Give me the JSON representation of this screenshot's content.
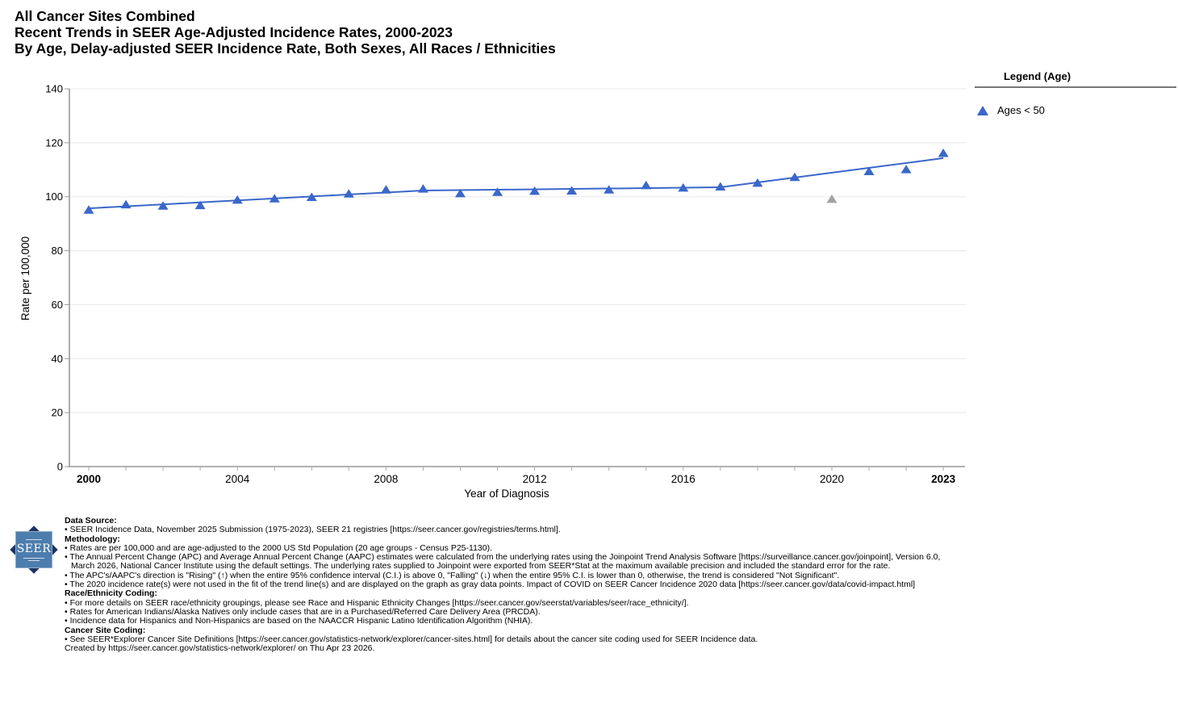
{
  "header": {
    "title_line1": "All Cancer Sites Combined",
    "title_line2": "Recent Trends in SEER Age-Adjusted Incidence Rates, 2000-2023",
    "title_line3": "By Age, Delay-adjusted SEER Incidence Rate, Both Sexes, All Races / Ethnicities"
  },
  "legend": {
    "title": "Legend (Age)",
    "entries": [
      {
        "label": "Ages < 50",
        "marker": "triangle-up-icon",
        "color": "#3A67CA"
      }
    ]
  },
  "chart_data": {
    "type": "line",
    "title": "All Cancer Sites Combined — Recent Trends in SEER Age-Adjusted Incidence Rates, 2000-2023, By Age, Delay-adjusted SEER Incidence Rate, Both Sexes, All Races / Ethnicities",
    "xlabel": "Year of Diagnosis",
    "ylabel": "Rate per 100,000",
    "ylim": [
      0,
      140
    ],
    "yticks": [
      0,
      20,
      40,
      60,
      80,
      100,
      120,
      140
    ],
    "xticks": [
      2000,
      2004,
      2008,
      2012,
      2016,
      2020,
      2023
    ],
    "bold_xticks": [
      2000,
      2023
    ],
    "grid": "horizontal",
    "legend_position": "right",
    "colors": {
      "series": "#3A67CA",
      "excluded_point": "#A3A3A3",
      "gridline": "#E8E8E8",
      "axis": "#999999"
    },
    "series": [
      {
        "name": "Ages < 50 (observed rates)",
        "marker": "triangle-up",
        "color": "#3A67CA",
        "point_name": "data-point-triangle",
        "x": [
          2000,
          2001,
          2002,
          2003,
          2004,
          2005,
          2006,
          2007,
          2008,
          2009,
          2010,
          2011,
          2012,
          2013,
          2014,
          2015,
          2016,
          2017,
          2018,
          2019,
          2020,
          2021,
          2022,
          2023
        ],
        "y": [
          95.2,
          97.2,
          96.7,
          96.9,
          98.9,
          99.4,
          99.9,
          101.2,
          102.7,
          103.0,
          101.3,
          101.8,
          102.2,
          102.3,
          102.7,
          104.3,
          103.4,
          103.8,
          105.2,
          107.3,
          null,
          109.5,
          110.2,
          116.2
        ]
      },
      {
        "name": "2020 rate (excluded from trend fit, COVID impact)",
        "marker": "triangle-up",
        "color": "#A3A3A3",
        "point_name": "covid-2020-gray-point",
        "x": [
          2020
        ],
        "y": [
          99.2
        ]
      },
      {
        "name": "Joinpoint trend line",
        "marker": "none",
        "color": "#3A67CA",
        "x": [
          2000,
          2009,
          2017,
          2023
        ],
        "y": [
          95.7,
          102.3,
          103.5,
          114.3
        ]
      }
    ]
  },
  "footnotes": {
    "items": [
      {
        "style": "head",
        "text": "Data Source:"
      },
      {
        "style": "bullet",
        "text": "SEER Incidence Data, November 2025 Submission (1975-2023), SEER 21 registries [https://seer.cancer.gov/registries/terms.html]."
      },
      {
        "style": "head",
        "text": "Methodology:"
      },
      {
        "style": "bullet",
        "text": "Rates are per 100,000 and are age-adjusted to the 2000 US Std Population (20 age groups - Census P25-1130)."
      },
      {
        "style": "bullet",
        "text": "The Annual Percent Change (APC) and Average Annual Percent Change (AAPC) estimates were calculated from the underlying rates using the Joinpoint Trend Analysis Software [https://surveillance.cancer.gov/joinpoint], Version 6.0, March 2026, National Cancer Institute using the default settings. The underlying rates supplied to Joinpoint were exported from SEER*Stat at the maximum available precision and included the standard error for the rate."
      },
      {
        "style": "bullet",
        "text": "The APC's/AAPC's direction is \"Rising\" (↑) when the entire 95% confidence interval (C.I.) is above 0, \"Falling\" (↓) when the entire 95% C.I. is lower than 0, otherwise, the trend is considered \"Not Significant\"."
      },
      {
        "style": "bullet",
        "text": "The 2020 incidence rate(s) were not used in the fit of the trend line(s) and are displayed on the graph as gray data points. Impact of COVID on SEER Cancer Incidence 2020 data [https://seer.cancer.gov/data/covid-impact.html]"
      },
      {
        "style": "head",
        "text": "Race/Ethnicity Coding:"
      },
      {
        "style": "bullet",
        "text": "For more details on SEER race/ethnicity groupings, please see Race and Hispanic Ethnicity Changes [https://seer.cancer.gov/seerstat/variables/seer/race_ethnicity/]."
      },
      {
        "style": "bullet",
        "text": "Rates for American Indians/Alaska Natives only include cases that are in a Purchased/Referred Care Delivery Area (PRCDA)."
      },
      {
        "style": "bullet",
        "text": "Incidence data for Hispanics and Non-Hispanics are based on the NAACCR Hispanic Latino Identification Algorithm (NHIA)."
      },
      {
        "style": "head",
        "text": "Cancer Site Coding:"
      },
      {
        "style": "bullet",
        "text": "See SEER*Explorer Cancer Site Definitions [https://seer.cancer.gov/statistics-network/explorer/cancer-sites.html] for details about the cancer site coding used for SEER Incidence data."
      },
      {
        "style": "plain",
        "text": "Created by https://seer.cancer.gov/statistics-network/explorer/ on Thu Apr 23 2026."
      }
    ]
  },
  "logo": {
    "text": "SEER"
  }
}
